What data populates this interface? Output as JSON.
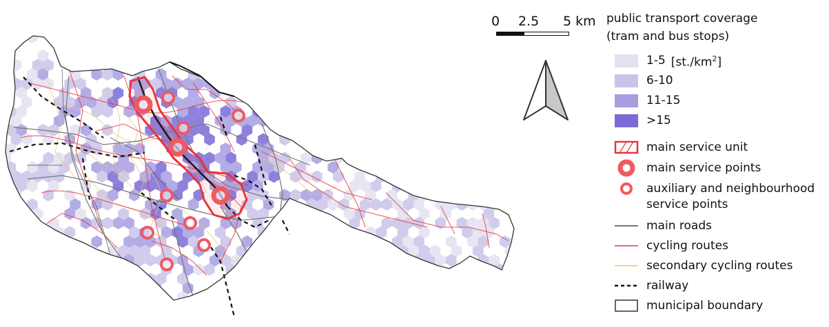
{
  "scale_bar": {
    "labels": [
      "0",
      "2.5",
      "5 km"
    ]
  },
  "north_arrow": {
    "icon": "north-arrow-icon"
  },
  "legend": {
    "title_line1": "public transport coverage",
    "title_line2": "(tram and bus stops)",
    "density_classes": [
      {
        "label": "1-5",
        "unit": "[st./km",
        "unit_sup": "2",
        "unit_end": "]",
        "color": "#e3e1f0"
      },
      {
        "label": "6-10",
        "color": "#c9c3e8"
      },
      {
        "label": "11-15",
        "color": "#a79ee0"
      },
      {
        "label": ">15",
        "color": "#7a6bd6"
      }
    ],
    "items": {
      "main_service_unit": "main service unit",
      "main_service_points": "main service points",
      "aux_line1": "auxiliary and neighbourhood",
      "aux_line2": "service points",
      "main_roads": "main roads",
      "cycling_routes": "cycling routes",
      "secondary_cycling_routes": "secondary cycling routes",
      "railway": "railway",
      "municipal_boundary": "municipal boundary"
    },
    "colors": {
      "service": "#e8343c",
      "cycling": "#e8343c",
      "secondary_cycling": "#f0c070",
      "roads": "#777777",
      "railway": "#111111",
      "boundary": "#333333"
    }
  }
}
